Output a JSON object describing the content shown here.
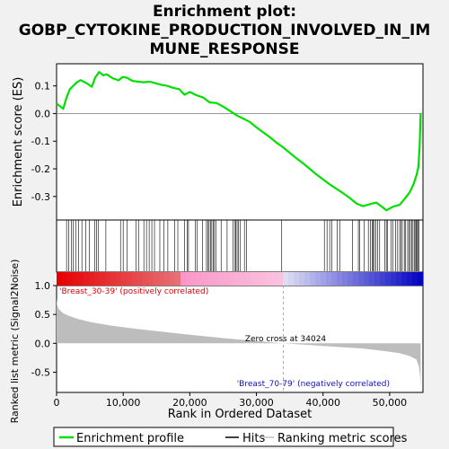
{
  "chart_data": {
    "type": "line",
    "title_lines": [
      "Enrichment plot:",
      "GOBP_CYTOKINE_PRODUCTION_INVOLVED_IN_IM",
      "MUNE_RESPONSE"
    ],
    "top_panel": {
      "ylabel": "Enrichment score (ES)",
      "ylim": [
        -0.385,
        0.18
      ],
      "yticks": [
        0.1,
        0.0,
        -0.1,
        -0.2,
        -0.3
      ],
      "ytick_labels": [
        "0.1",
        "0.0",
        "-0.1",
        "-0.2",
        "-0.3"
      ],
      "grid": false,
      "series_name": "Enrichment profile",
      "x": [
        0,
        1000,
        1500,
        2000,
        2500,
        3000,
        3600,
        4500,
        5300,
        5800,
        6400,
        7000,
        7500,
        8400,
        9300,
        9900,
        10500,
        11400,
        12300,
        13100,
        14000,
        14800,
        15700,
        16600,
        17500,
        18400,
        19200,
        20000,
        21000,
        22000,
        23000,
        24000,
        25000,
        26000,
        27000,
        28000,
        29000,
        30000,
        31000,
        32000,
        33000,
        34000,
        35000,
        36000,
        37000,
        38000,
        39000,
        40000,
        41000,
        42000,
        43000,
        44000,
        45000,
        46000,
        47000,
        48000,
        49000,
        49500,
        50500,
        51500,
        52200,
        53000,
        53600,
        54000,
        54300,
        54500,
        54650
      ],
      "y": [
        0.036,
        0.017,
        0.058,
        0.088,
        0.1,
        0.112,
        0.121,
        0.11,
        0.097,
        0.13,
        0.15,
        0.138,
        0.142,
        0.128,
        0.12,
        0.132,
        0.13,
        0.118,
        0.115,
        0.113,
        0.115,
        0.11,
        0.104,
        0.1,
        0.093,
        0.088,
        0.068,
        0.078,
        0.066,
        0.058,
        0.04,
        0.038,
        0.025,
        0.01,
        -0.006,
        -0.018,
        -0.03,
        -0.05,
        -0.068,
        -0.085,
        -0.105,
        -0.122,
        -0.142,
        -0.162,
        -0.18,
        -0.2,
        -0.22,
        -0.238,
        -0.256,
        -0.272,
        -0.288,
        -0.305,
        -0.325,
        -0.335,
        -0.328,
        -0.322,
        -0.34,
        -0.35,
        -0.337,
        -0.33,
        -0.31,
        -0.285,
        -0.255,
        -0.225,
        -0.195,
        -0.12,
        0.0
      ],
      "line_color": "#00e000"
    },
    "hits": [
      1500,
      1800,
      2200,
      2500,
      2900,
      3300,
      3800,
      4400,
      4900,
      5700,
      6000,
      6300,
      7400,
      9600,
      10000,
      10600,
      11900,
      12300,
      13100,
      13500,
      13900,
      14300,
      14700,
      15500,
      16100,
      16700,
      17700,
      18200,
      19200,
      19600,
      19800,
      20800,
      21100,
      21900,
      22500,
      22700,
      22900,
      23100,
      23300,
      23500,
      23700,
      23900,
      24700,
      25600,
      26500,
      26800,
      26900,
      27100,
      27300,
      27600,
      28200,
      28500,
      33800,
      40200,
      40600,
      41000,
      41300,
      42100,
      42500,
      44400,
      45300,
      45500,
      46200,
      46800,
      47100,
      47400,
      47500,
      47700,
      47900,
      48200,
      48500,
      49300,
      49500,
      49700,
      50200,
      50500,
      50900,
      51200,
      51500,
      51700,
      51900,
      52200,
      52400,
      52700,
      52900,
      53100,
      53300,
      53500,
      53700,
      53900,
      54000,
      54100,
      54300,
      54400
    ],
    "bottom_panel": {
      "ylabel": "Ranked list metric (Signal2Noise)",
      "ylim": [
        -0.85,
        1.0
      ],
      "yticks": [
        1.0,
        0.5,
        0.0,
        -0.5
      ],
      "ytick_labels": [
        "1.0",
        "0.5",
        "0.0",
        "-0.5"
      ],
      "xlabel": "Rank in Ordered Dataset",
      "xlim": [
        0,
        55000
      ],
      "xticks": [
        0,
        10000,
        20000,
        30000,
        40000,
        50000
      ],
      "xtick_labels": [
        "0",
        "10,000",
        "20,000",
        "30,000",
        "40,000",
        "50,000"
      ],
      "metric_x": [
        0,
        100,
        300,
        600,
        1000,
        2000,
        3000,
        5000,
        8000,
        12000,
        16000,
        20000,
        25000,
        30000,
        34024,
        38000,
        42000,
        46000,
        49000,
        51500,
        53000,
        54000,
        54400,
        54600,
        54650
      ],
      "metric_y": [
        0.78,
        0.66,
        0.6,
        0.56,
        0.52,
        0.47,
        0.43,
        0.37,
        0.31,
        0.25,
        0.2,
        0.15,
        0.09,
        0.04,
        0.0,
        -0.03,
        -0.06,
        -0.09,
        -0.13,
        -0.17,
        -0.22,
        -0.28,
        -0.4,
        -0.6,
        -0.8
      ],
      "zero_cross_label": "Zero cross at 34024",
      "zero_cross_x": 34024,
      "pos_label": "'Breast_30-39' (positively correlated)",
      "neg_label": "'Breast_70-79' (negatively correlated)",
      "pos_label_color": "#e00000",
      "neg_label_color": "#1010c0"
    },
    "legend": [
      {
        "label": "Enrichment profile",
        "color": "#00e000",
        "kind": "green-line"
      },
      {
        "label": "Hits",
        "color": "#000000",
        "kind": "black-line"
      },
      {
        "label": "Ranking metric scores",
        "color": "#c0c0c0",
        "kind": "grey-line"
      }
    ]
  }
}
